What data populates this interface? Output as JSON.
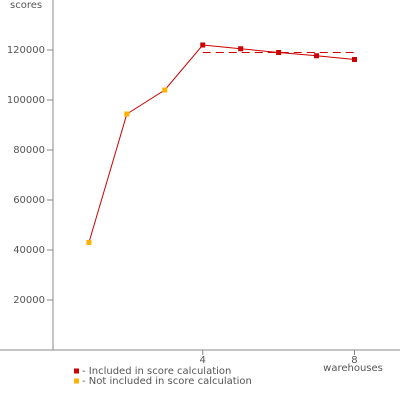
{
  "chart_data": {
    "type": "line",
    "y_label": "scores",
    "x_label": "warehouses",
    "x": [
      1,
      2,
      3,
      4,
      5,
      6,
      7,
      8
    ],
    "series": [
      {
        "name": "- Included in score calculation",
        "color": "#cc0000",
        "values": [
          null,
          null,
          null,
          122000,
          120500,
          119000,
          117700,
          116200
        ]
      },
      {
        "name": "- Not included in score calculation",
        "color": "#ffb000",
        "values": [
          43000,
          94400,
          104000,
          null,
          null,
          null,
          null,
          null
        ]
      }
    ],
    "line_color": "#cc0000",
    "reference_line": {
      "value": 119000,
      "from": 4,
      "to": 8,
      "color": "#cc0000"
    },
    "xlim": [
      0,
      9.2
    ],
    "ylim": [
      0,
      140000
    ],
    "xticks": [
      4,
      8
    ],
    "yticks": [
      20000,
      40000,
      60000,
      80000,
      100000,
      120000
    ]
  }
}
